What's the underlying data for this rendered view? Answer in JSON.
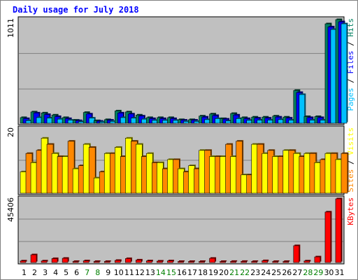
{
  "title": "Daily usage for July 2018",
  "colors": {
    "background": "#c0c0c0",
    "grid": "#808080",
    "pages": "#00c0ff",
    "files": "#0000ff",
    "hits": "#008060",
    "visits": "#ffff00",
    "sites": "#ff8800",
    "kbytes": "#ff0000",
    "weekday": "#000000",
    "weekend": "#008000"
  },
  "chart_data": [
    {
      "type": "bar",
      "panel": "hits-files-pages",
      "max_label": "1011",
      "right_label": [
        {
          "text": "Pages",
          "color": "#00c0ff"
        },
        {
          "text": " / ",
          "color": "#000000"
        },
        {
          "text": "Files",
          "color": "#0000ff"
        },
        {
          "text": " / ",
          "color": "#000000"
        },
        {
          "text": "Hits",
          "color": "#008060"
        }
      ],
      "ylim": [
        0,
        1011
      ],
      "categories": [
        "1",
        "2",
        "3",
        "4",
        "5",
        "6",
        "7",
        "8",
        "9",
        "10",
        "11",
        "12",
        "13",
        "14",
        "15",
        "16",
        "17",
        "18",
        "19",
        "20",
        "21",
        "22",
        "23",
        "24",
        "25",
        "26",
        "27",
        "28",
        "29",
        "30",
        "31"
      ],
      "weekend": [
        false,
        false,
        false,
        false,
        false,
        false,
        true,
        true,
        false,
        false,
        false,
        false,
        false,
        true,
        true,
        false,
        false,
        false,
        false,
        false,
        true,
        true,
        false,
        false,
        false,
        false,
        false,
        true,
        true,
        false,
        false
      ],
      "series": [
        {
          "name": "Hits",
          "color": "#008060",
          "values": [
            55,
            110,
            100,
            80,
            55,
            30,
            105,
            25,
            35,
            120,
            110,
            80,
            55,
            55,
            55,
            35,
            35,
            70,
            90,
            45,
            95,
            55,
            60,
            60,
            70,
            60,
            320,
            65,
            65,
            970,
            1011
          ]
        },
        {
          "name": "Files",
          "color": "#0000ff",
          "values": [
            45,
            100,
            85,
            65,
            45,
            25,
            90,
            20,
            30,
            100,
            90,
            70,
            45,
            45,
            45,
            30,
            30,
            60,
            75,
            40,
            80,
            45,
            50,
            50,
            60,
            50,
            300,
            55,
            55,
            940,
            990
          ]
        },
        {
          "name": "Pages",
          "color": "#00c0ff",
          "values": [
            25,
            55,
            50,
            40,
            30,
            15,
            50,
            12,
            18,
            55,
            50,
            40,
            28,
            28,
            28,
            18,
            18,
            35,
            45,
            22,
            45,
            28,
            30,
            30,
            35,
            30,
            280,
            30,
            30,
            915,
            970
          ]
        }
      ]
    },
    {
      "type": "bar",
      "panel": "visits-sites",
      "max_label": "20",
      "right_label": [
        {
          "text": "Sites",
          "color": "#ff8800"
        },
        {
          "text": " / ",
          "color": "#000000"
        },
        {
          "text": "Visits",
          "color": "#ffff00"
        }
      ],
      "ylim": [
        0,
        20
      ],
      "categories": [
        "1",
        "2",
        "3",
        "4",
        "5",
        "6",
        "7",
        "8",
        "9",
        "10",
        "11",
        "12",
        "13",
        "14",
        "15",
        "16",
        "17",
        "18",
        "19",
        "20",
        "21",
        "22",
        "23",
        "24",
        "25",
        "26",
        "27",
        "28",
        "29",
        "30",
        "31"
      ],
      "weekend": [
        false,
        false,
        false,
        false,
        false,
        false,
        true,
        true,
        false,
        false,
        false,
        false,
        false,
        true,
        true,
        false,
        false,
        false,
        false,
        false,
        true,
        true,
        false,
        false,
        false,
        false,
        false,
        true,
        true,
        false,
        false
      ],
      "series": [
        {
          "name": "Visits",
          "color": "#ffff00",
          "values": [
            7,
            10,
            18,
            13,
            12,
            8,
            16,
            5,
            13,
            15,
            18,
            16,
            13,
            10,
            11,
            8,
            9,
            14,
            12,
            12,
            12,
            6,
            16,
            13,
            12,
            14,
            13,
            13,
            10,
            13,
            11
          ]
        },
        {
          "name": "Sites",
          "color": "#ff8800",
          "values": [
            13,
            14,
            16,
            12,
            17,
            9,
            15,
            7,
            13,
            12,
            17,
            12,
            10,
            8,
            11,
            7,
            8,
            14,
            12,
            16,
            17,
            6,
            16,
            14,
            12,
            14,
            12,
            13,
            11,
            13,
            13
          ]
        }
      ]
    },
    {
      "type": "bar",
      "panel": "kbytes",
      "max_label": "45406",
      "right_label": [
        {
          "text": "KBytes",
          "color": "#ff0000"
        }
      ],
      "ylim": [
        0,
        45406
      ],
      "categories": [
        "1",
        "2",
        "3",
        "4",
        "5",
        "6",
        "7",
        "8",
        "9",
        "10",
        "11",
        "12",
        "13",
        "14",
        "15",
        "16",
        "17",
        "18",
        "19",
        "20",
        "21",
        "22",
        "23",
        "24",
        "25",
        "26",
        "27",
        "28",
        "29",
        "30",
        "31"
      ],
      "weekend": [
        false,
        false,
        false,
        false,
        false,
        false,
        true,
        true,
        false,
        false,
        false,
        false,
        false,
        true,
        true,
        false,
        false,
        false,
        false,
        false,
        true,
        true,
        false,
        false,
        false,
        false,
        false,
        true,
        true,
        false,
        false
      ],
      "series": [
        {
          "name": "KBytes",
          "color": "#ff0000",
          "values": [
            1100,
            5500,
            1100,
            2800,
            3000,
            300,
            1200,
            300,
            300,
            1500,
            2800,
            1800,
            1200,
            1000,
            1200,
            300,
            300,
            300,
            3000,
            300,
            800,
            800,
            300,
            1300,
            300,
            300,
            12000,
            1100,
            4000,
            36000,
            45406
          ]
        }
      ]
    }
  ]
}
